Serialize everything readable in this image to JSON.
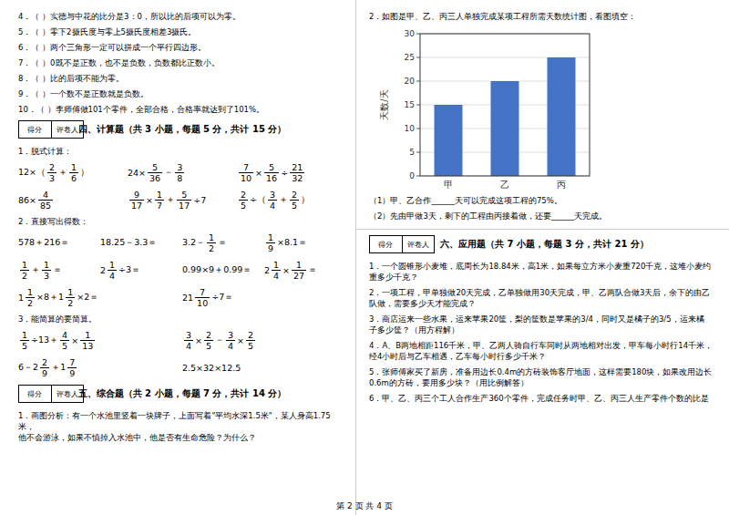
{
  "chart_data": {
    "type": "bar",
    "categories": [
      "甲",
      "乙",
      "丙"
    ],
    "values": [
      15,
      20,
      25
    ],
    "color": "#4472c4",
    "ylabel": "天数/天",
    "ylim": [
      0,
      30
    ],
    "yticks": [
      0,
      5,
      10,
      15,
      20,
      25,
      30
    ],
    "grid": true,
    "annotations": [
      "4．（    ）实德与中花的比分是3：0，所以比的后项可以为零。",
      "5．（    ）零下2摄氏度与零上5摄氏度相差3摄氏。",
      "6．（    ）两个三角形一定可以拼成一个平行四边形。",
      "7．（    ）0既不是正数，也不是负数，负数都比正数小。",
      "8．（    ）比的后项不能为零。",
      "9．（    ）一个数不是正数就是负数。",
      "10．（    ）李师傅做101个零件，全部合格，合格率就达到了101%。",
      [
        "得分",
        "评卷人"
      ],
      "四、计算题（共 3 小题，每题 5 分，共计 15 分）",
      "1．脱式计算：",
      [
        [
          "12×（",
          [
            "2",
            "3"
          ],
          "＋",
          [
            "1",
            "6"
          ],
          "）"
        ],
        [
          "24×",
          [
            "5",
            "36"
          ],
          "－",
          [
            "3",
            "8"
          ]
        ],
        [
          [
            "7",
            "10"
          ],
          "×",
          [
            "5",
            "16"
          ],
          "÷",
          [
            "21",
            "32"
          ]
        ]
      ],
      [
        [
          "86×",
          [
            "4",
            "85"
          ]
        ],
        [
          [
            "9",
            "17"
          ],
          "×",
          [
            "1",
            "7"
          ],
          "＋",
          [
            "5",
            "17"
          ],
          "÷7"
        ],
        [
          [
            "2",
            "5"
          ],
          "÷（",
          [
            "3",
            "4"
          ],
          "＋",
          [
            "2",
            "5"
          ],
          "）"
        ]
      ],
      "2．直接写出得数：",
      [
        [
          "578＋216＝"
        ],
        [
          "18.25－3.3＝"
        ],
        [
          "3.2－",
          [
            "1",
            "2"
          ],
          "＝"
        ],
        [
          [
            "1",
            "9"
          ],
          "×8.1＝"
        ]
      ],
      [
        [
          [
            "1",
            "2"
          ],
          "＋",
          [
            "1",
            "3"
          ],
          "＝"
        ],
        [
          "2",
          [
            "1",
            "4"
          ],
          "÷3＝"
        ],
        [
          "0.99×9＋0.99＝"
        ],
        [
          "2",
          [
            "1",
            "4"
          ],
          "×",
          [
            "1",
            "27"
          ],
          "＝"
        ]
      ],
      [
        [
          "1",
          [
            "1",
            "2"
          ],
          "×8＋1",
          [
            "1",
            "2"
          ],
          "×2＝"
        ],
        [
          "21",
          [
            "7",
            "10"
          ],
          "÷7＝"
        ]
      ],
      "3．能简算的要简算。",
      [
        [
          [
            "1",
            "5"
          ],
          "÷13＋",
          [
            "4",
            "5"
          ],
          "×",
          [
            "1",
            "13"
          ]
        ],
        [
          [
            "3",
            "4"
          ],
          "×",
          [
            "2",
            "5"
          ],
          "－",
          [
            "3",
            "4"
          ],
          "×",
          [
            "2",
            "5"
          ]
        ]
      ],
      [
        [
          "6－2",
          [
            "2",
            "9"
          ],
          "＋1",
          [
            "7",
            "9"
          ]
        ],
        [
          "2.5×32×12.5"
        ]
      ],
      [
        "得分",
        "评卷人"
      ],
      "五、综合题（共 2 小题，每题 7 分，共计 14 分）",
      "1．画图分析：有一个水池里竖着一块牌子，上面写着\"平均水深1.5米\"，某人身高1.75米，\n他不会游泳，如果不慎掉入水池中，他是否有生命危险？为什么？",
      "2．如图是甲、乙、丙三人单独完成某项工程所需天数统计图，看图填空：",
      "（1）甲、乙合作______天可以完成这项工程的75%。",
      "（2）先由甲做3天，剩下的工程由丙接着做，还要______天完成。",
      [
        "得分",
        "评卷人"
      ],
      "六、应用题（共 7 小题，每题 3 分，共计 21 分）",
      "1．一个圆锥形小麦堆，底周长为18.84米，高1米，如果每立方米小麦重720千克，这堆小麦约\n重多少千克？",
      "2．一项工程，甲单独做20天完成，乙单独做用30天完成，甲、乙两队合做3天后，余下的由乙\n队做，需要多少天才能完成？",
      "3．商店运来一些水果，运来苹果20筐，梨的筐数是苹果的3/4，同时又是橘子的3/5，运来橘\n子多少筐？（用方程解）",
      "4．A、B两地相距116千米，甲、乙两人骑自行车同时从两地相对出发，甲车每小时行14千米，\n经4小时后与乙车相遇，乙车每小时行多少千米？",
      "5．张师傅家买了新房，准备用边长0.4m的方砖装饰客厅地面，这样需要180块，如果改用边长\n0.6m的方砖，要用多少块？（用比例解答）",
      "6．甲、乙、丙三个工人合作生产360个零件，完成任务时甲、乙、丙三人生产零件个数的比是",
      "第 2 页 共 4 页"
    ]
  }
}
